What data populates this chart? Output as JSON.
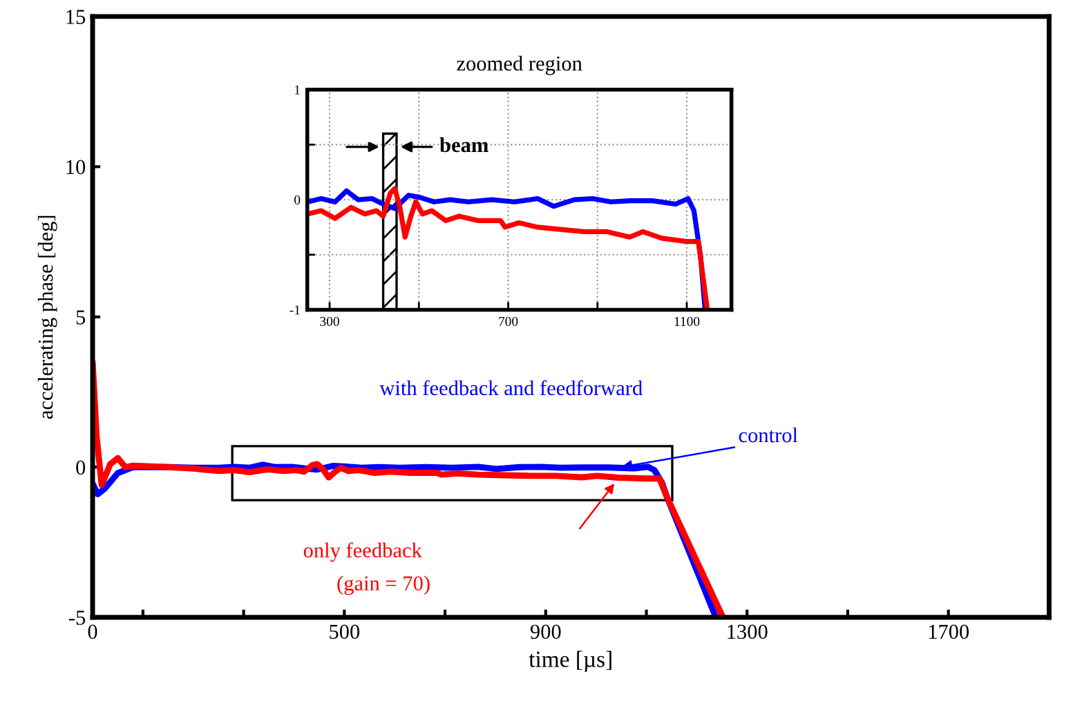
{
  "chart_data": [
    {
      "type": "line",
      "xlabel": "time [µs]",
      "ylabel": "accelerating phase [deg]",
      "xlim": [
        0,
        1900
      ],
      "xticks": [
        0,
        {
          "value": 100,
          "label": null
        },
        {
          "value": 300,
          "label": null
        },
        500,
        {
          "value": 700,
          "label": null
        },
        900,
        {
          "value": 1100,
          "label": null
        },
        1300,
        {
          "value": 1500,
          "label": null
        },
        1700,
        {
          "value": 1900,
          "label": null
        }
      ],
      "ylim": [
        -5,
        15
      ],
      "yticks": [
        -5,
        0,
        5,
        10,
        15
      ],
      "grid": false,
      "legend": false,
      "series": [
        {
          "name": "with feedback and feedforward",
          "color": "#0000ff",
          "x": [
            0,
            10,
            25,
            50,
            80,
            150,
            200,
            251,
            281,
            312,
            338,
            364,
            395,
            420,
            446,
            477,
            503,
            534,
            570,
            611,
            663,
            714,
            766,
            802,
            848,
            889,
            930,
            972,
            1023,
            1075,
            1103,
            1116,
            1131,
            1141,
            1238
          ],
          "values": [
            -0.55,
            -0.9,
            -0.7,
            -0.2,
            0.0,
            0.0,
            -0.02,
            -0.02,
            0.01,
            -0.02,
            0.08,
            0.0,
            0.01,
            -0.04,
            -0.08,
            0.04,
            0.02,
            -0.02,
            0.0,
            -0.02,
            0.0,
            -0.02,
            0.01,
            -0.06,
            0.0,
            0.01,
            -0.02,
            -0.01,
            -0.01,
            -0.04,
            0.01,
            -0.1,
            -0.52,
            -1.0,
            -5.0
          ]
        },
        {
          "name": "only feedback",
          "color": "#ff0000",
          "x": [
            0,
            8,
            18,
            35,
            50,
            65,
            80,
            150,
            200,
            251,
            281,
            312,
            348,
            379,
            405,
            420,
            436,
            446,
            457,
            469,
            482,
            493,
            508,
            529,
            560,
            590,
            632,
            683,
            693,
            724,
            766,
            817,
            869,
            920,
            972,
            1002,
            1044,
            1100,
            1126,
            1141,
            1252
          ],
          "values": [
            3.5,
            1.0,
            -0.6,
            0.1,
            0.3,
            0.0,
            0.05,
            0.0,
            -0.05,
            -0.13,
            -0.1,
            -0.17,
            -0.07,
            -0.13,
            -0.1,
            -0.15,
            0.06,
            0.1,
            -0.06,
            -0.34,
            -0.15,
            -0.02,
            -0.13,
            -0.1,
            -0.19,
            -0.15,
            -0.19,
            -0.19,
            -0.25,
            -0.21,
            -0.25,
            -0.27,
            -0.29,
            -0.29,
            -0.34,
            -0.29,
            -0.35,
            -0.38,
            -0.38,
            -1.0,
            -5.0
          ]
        }
      ],
      "annotations": [
        {
          "text": "control",
          "x": 1050,
          "y": 0.0
        },
        "(gain = 70)"
      ]
    },
    {
      "type": "line",
      "title": "zoomed region",
      "xlim": [
        250,
        1200
      ],
      "xticks": [
        300,
        {
          "value": 500,
          "label": null
        },
        700,
        {
          "value": 900,
          "label": null
        },
        1100
      ],
      "ylim": [
        -1,
        1
      ],
      "yticks": [
        -1,
        {
          "value": -0.5,
          "label": null
        },
        0,
        {
          "value": 0.5,
          "label": null
        },
        1
      ],
      "grid": true,
      "legend": false,
      "bands": [
        {
          "axis": "x",
          "from": 420,
          "to": 450,
          "label": "beam"
        }
      ],
      "series": [
        {
          "color": "#0000ff",
          "x": [
            251,
            281,
            312,
            338,
            364,
            395,
            420,
            446,
            477,
            503,
            534,
            570,
            611,
            663,
            714,
            766,
            802,
            848,
            889,
            930,
            972,
            1023,
            1075,
            1103,
            1116,
            1131,
            1141
          ],
          "values": [
            -0.02,
            0.01,
            -0.02,
            0.08,
            0.0,
            0.01,
            -0.04,
            -0.08,
            0.04,
            0.02,
            -0.02,
            0.0,
            -0.02,
            0.0,
            -0.02,
            0.01,
            -0.06,
            0.0,
            0.01,
            -0.02,
            -0.01,
            -0.01,
            -0.04,
            0.01,
            -0.1,
            -0.52,
            -1.0
          ]
        },
        {
          "color": "#ff0000",
          "x": [
            251,
            281,
            312,
            348,
            379,
            405,
            420,
            436,
            446,
            457,
            469,
            482,
            493,
            508,
            529,
            560,
            590,
            632,
            683,
            693,
            724,
            766,
            817,
            869,
            920,
            972,
            1002,
            1044,
            1100,
            1126,
            1146
          ],
          "values": [
            -0.13,
            -0.1,
            -0.17,
            -0.07,
            -0.13,
            -0.1,
            -0.15,
            0.06,
            0.1,
            -0.06,
            -0.34,
            -0.15,
            -0.02,
            -0.13,
            -0.1,
            -0.19,
            -0.15,
            -0.19,
            -0.19,
            -0.25,
            -0.21,
            -0.25,
            -0.27,
            -0.29,
            -0.29,
            -0.34,
            -0.29,
            -0.35,
            -0.38,
            -0.38,
            -1.0
          ]
        }
      ]
    }
  ]
}
